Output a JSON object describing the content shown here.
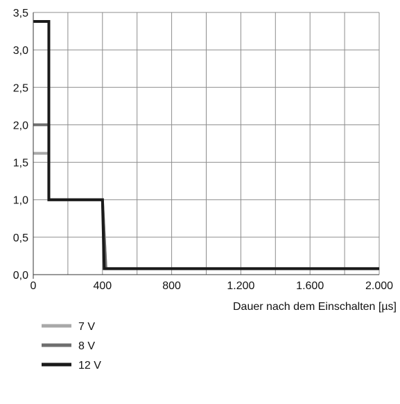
{
  "chart_data": {
    "type": "line",
    "xlabel": "Dauer nach dem Einschalten [µs]",
    "ylabel": "",
    "xlim": [
      0,
      2000
    ],
    "ylim": [
      0,
      3.5
    ],
    "x_ticks": [
      0,
      400,
      800,
      1200,
      1600,
      2000
    ],
    "x_tick_labels": [
      "0",
      "400",
      "800",
      "1.200",
      "1.600",
      "2.000"
    ],
    "y_ticks": [
      0,
      0.5,
      1.0,
      1.5,
      2.0,
      2.5,
      3.0,
      3.5
    ],
    "y_tick_labels": [
      "0,0",
      "0,5",
      "1,0",
      "1,5",
      "2,0",
      "2,5",
      "3,0",
      "3,5"
    ],
    "grid": true,
    "grid_x_step": 200,
    "grid_y_step": 0.5,
    "legend_position": "bottom-left",
    "series": [
      {
        "name": "7 V",
        "color": "#a8a8a8",
        "points": [
          [
            0,
            1.62
          ],
          [
            90,
            1.62
          ],
          [
            90,
            1.0
          ],
          [
            400,
            1.0
          ],
          [
            420,
            0.08
          ],
          [
            2000,
            0.08
          ]
        ]
      },
      {
        "name": "8 V",
        "color": "#6e6e6e",
        "points": [
          [
            0,
            2.0
          ],
          [
            90,
            2.0
          ],
          [
            90,
            1.0
          ],
          [
            400,
            1.0
          ],
          [
            420,
            0.08
          ],
          [
            2000,
            0.08
          ]
        ]
      },
      {
        "name": "12 V",
        "color": "#1a1a1a",
        "points": [
          [
            0,
            3.38
          ],
          [
            90,
            3.38
          ],
          [
            90,
            1.0
          ],
          [
            400,
            1.0
          ],
          [
            410,
            0.08
          ],
          [
            2000,
            0.08
          ]
        ]
      }
    ]
  }
}
